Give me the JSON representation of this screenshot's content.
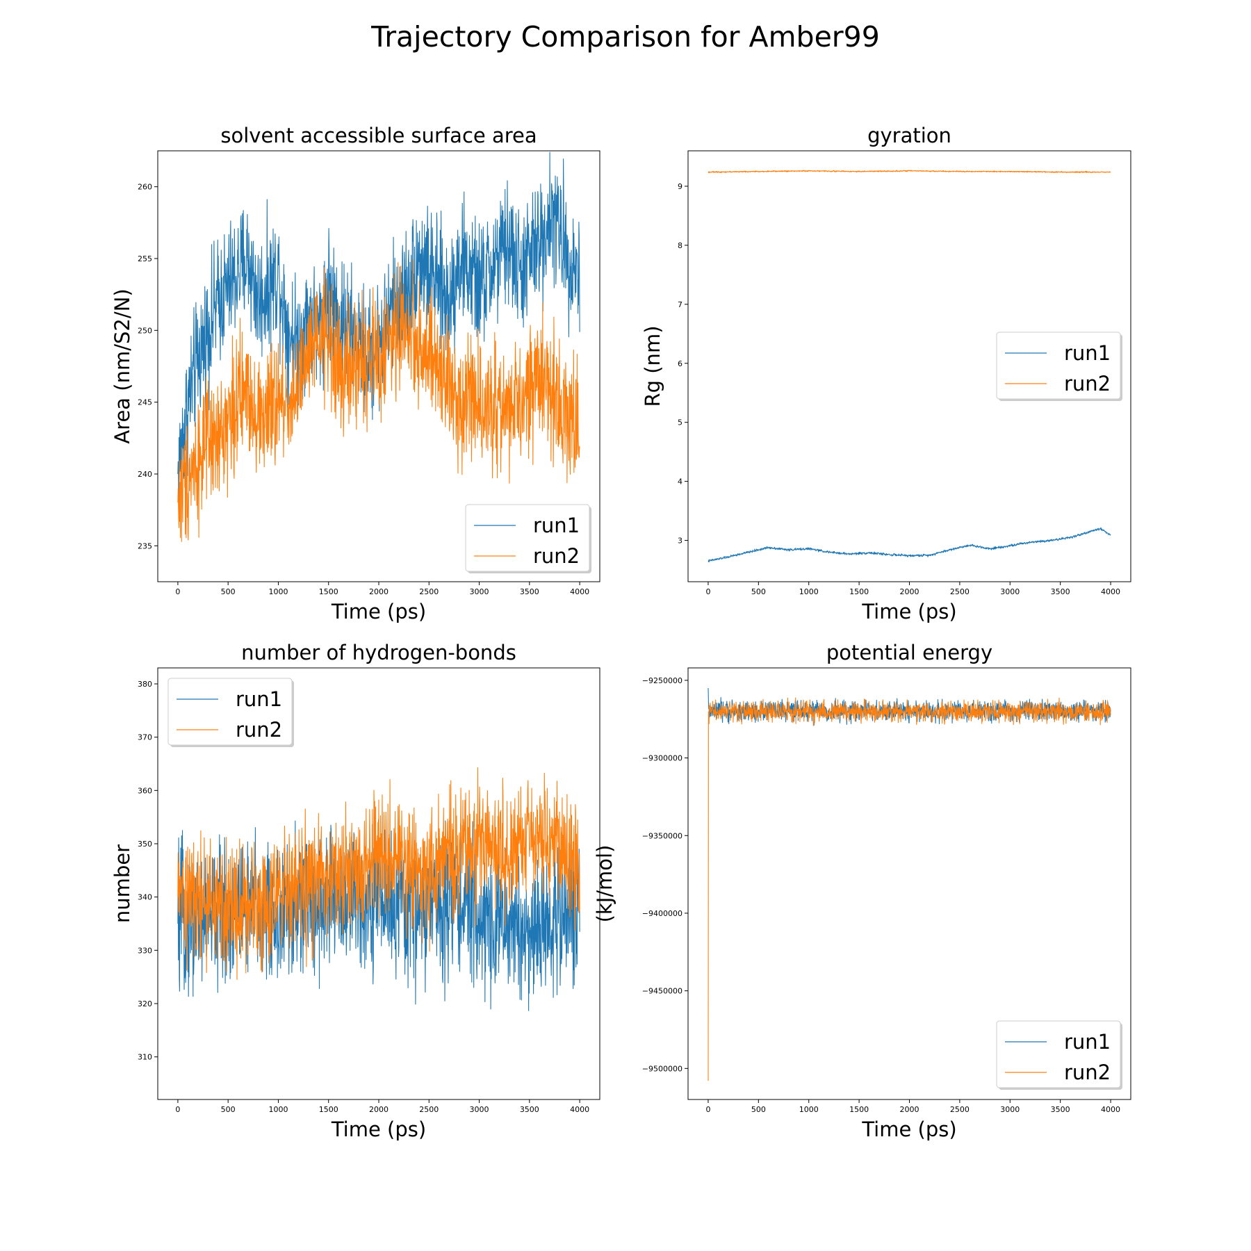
{
  "figure_title": "Trajectory Comparison for Amber99",
  "colors": {
    "run1": "#1f77b4",
    "run2": "#ff7f0e"
  },
  "chart_data": [
    {
      "type": "line",
      "title": "solvent accessible surface area",
      "xlabel": "Time (ps)",
      "ylabel": "Area (nm/S2/N)",
      "xlim": [
        -200,
        4200
      ],
      "ylim": [
        232.5,
        262.5
      ],
      "xticks": [
        0,
        500,
        1000,
        1500,
        2000,
        2500,
        3000,
        3500,
        4000
      ],
      "yticks": [
        235,
        240,
        245,
        250,
        255,
        260
      ],
      "legend": "lower-right",
      "series": [
        {
          "name": "run1",
          "x": [
            0,
            100,
            200,
            300,
            400,
            500,
            600,
            700,
            800,
            900,
            1000,
            1100,
            1200,
            1300,
            1400,
            1500,
            1600,
            1700,
            1800,
            1900,
            2000,
            2100,
            2200,
            2300,
            2400,
            2500,
            2600,
            2700,
            2800,
            2900,
            3000,
            3100,
            3200,
            3300,
            3400,
            3500,
            3600,
            3700,
            3800,
            3900,
            4000
          ],
          "y": [
            240,
            245,
            248,
            250,
            252,
            253,
            254,
            255,
            252,
            253,
            254,
            250,
            249,
            251,
            250,
            253,
            251,
            250,
            249,
            248,
            249,
            251,
            252,
            253,
            255,
            254,
            253,
            252,
            255,
            254,
            253,
            254,
            255,
            256,
            254,
            255,
            256,
            258,
            257,
            255,
            254
          ],
          "noise": 2.6
        },
        {
          "name": "run2",
          "x": [
            0,
            100,
            200,
            300,
            400,
            500,
            600,
            700,
            800,
            900,
            1000,
            1100,
            1200,
            1300,
            1400,
            1500,
            1600,
            1700,
            1800,
            1900,
            2000,
            2100,
            2200,
            2300,
            2400,
            2500,
            2600,
            2700,
            2800,
            2900,
            3000,
            3100,
            3200,
            3300,
            3400,
            3500,
            3600,
            3700,
            3800,
            3900,
            4000
          ],
          "y": [
            238,
            240,
            241,
            242,
            242,
            244,
            245,
            246,
            244,
            244,
            245,
            245,
            246,
            248,
            249,
            250,
            247,
            247,
            248,
            248,
            248,
            249,
            250,
            250,
            249,
            248,
            247,
            246,
            245,
            246,
            245,
            245,
            244,
            245,
            244,
            246,
            247,
            246,
            245,
            244,
            243
          ],
          "noise": 2.6
        }
      ]
    },
    {
      "type": "line",
      "title": "gyration",
      "xlabel": "Time (ps)",
      "ylabel": "Rg (nm)",
      "xlim": [
        -200,
        4200
      ],
      "ylim": [
        2.3,
        9.6
      ],
      "xticks": [
        0,
        500,
        1000,
        1500,
        2000,
        2500,
        3000,
        3500,
        4000
      ],
      "yticks": [
        3,
        4,
        5,
        6,
        7,
        8,
        9
      ],
      "legend": "center-right",
      "series": [
        {
          "name": "run1",
          "x": [
            0,
            200,
            400,
            600,
            800,
            1000,
            1200,
            1400,
            1600,
            1800,
            2000,
            2200,
            2400,
            2600,
            2800,
            3000,
            3200,
            3400,
            3600,
            3800,
            3900,
            4000
          ],
          "y": [
            2.65,
            2.72,
            2.8,
            2.88,
            2.84,
            2.86,
            2.8,
            2.77,
            2.79,
            2.76,
            2.74,
            2.75,
            2.84,
            2.92,
            2.86,
            2.91,
            2.97,
            3.0,
            3.05,
            3.15,
            3.2,
            3.09
          ],
          "noise": 0.012
        },
        {
          "name": "run2",
          "x": [
            0,
            500,
            1000,
            1500,
            2000,
            2500,
            3000,
            3500,
            4000
          ],
          "y": [
            9.24,
            9.25,
            9.26,
            9.25,
            9.26,
            9.25,
            9.25,
            9.24,
            9.24
          ],
          "noise": 0.006
        }
      ]
    },
    {
      "type": "line",
      "title": "number of hydrogen-bonds",
      "xlabel": "Time (ps)",
      "ylabel": "number",
      "xlim": [
        -200,
        4200
      ],
      "ylim": [
        302,
        383
      ],
      "xticks": [
        0,
        500,
        1000,
        1500,
        2000,
        2500,
        3000,
        3500,
        4000
      ],
      "yticks": [
        310,
        320,
        330,
        340,
        350,
        360,
        370,
        380
      ],
      "legend": "upper-left",
      "series": [
        {
          "name": "run1",
          "x": [
            0,
            250,
            500,
            750,
            1000,
            1250,
            1500,
            1750,
            2000,
            2250,
            2500,
            2750,
            3000,
            3250,
            3500,
            3750,
            4000
          ],
          "y": [
            335,
            336,
            337,
            338,
            336,
            338,
            340,
            339,
            341,
            337,
            338,
            340,
            336,
            335,
            333,
            336,
            338
          ],
          "noise": 8
        },
        {
          "name": "run2",
          "x": [
            0,
            250,
            500,
            750,
            1000,
            1250,
            1500,
            1750,
            2000,
            2250,
            2500,
            2750,
            3000,
            3250,
            3500,
            3750,
            4000
          ],
          "y": [
            340,
            339,
            338,
            339,
            340,
            342,
            343,
            344,
            348,
            346,
            345,
            348,
            350,
            349,
            352,
            350,
            345
          ],
          "noise": 7
        }
      ]
    },
    {
      "type": "line",
      "title": "potential energy",
      "xlabel": "Time (ps)",
      "ylabel": "(kJ/mol)",
      "xlim": [
        -200,
        4200
      ],
      "ylim": [
        -9520000,
        -9242000
      ],
      "xticks": [
        0,
        500,
        1000,
        1500,
        2000,
        2500,
        3000,
        3500,
        4000
      ],
      "yticks": [
        -9250000,
        -9300000,
        -9350000,
        -9400000,
        -9450000,
        -9500000
      ],
      "legend": "lower-right",
      "series": [
        {
          "name": "run1",
          "x": [
            0,
            2,
            500,
            1000,
            1500,
            2000,
            2500,
            3000,
            3500,
            4000
          ],
          "y": [
            -9255000,
            -9270000,
            -9270000,
            -9270000,
            -9270000,
            -9270000,
            -9270000,
            -9270000,
            -9270000,
            -9270000
          ],
          "noise": 4000
        },
        {
          "name": "run2",
          "x": [
            0,
            2,
            500,
            1000,
            1500,
            2000,
            2500,
            3000,
            3500,
            4000
          ],
          "y": [
            -9508000,
            -9270000,
            -9270000,
            -9270000,
            -9270000,
            -9270000,
            -9270000,
            -9270000,
            -9270000,
            -9270000
          ],
          "noise": 4000
        }
      ]
    }
  ]
}
